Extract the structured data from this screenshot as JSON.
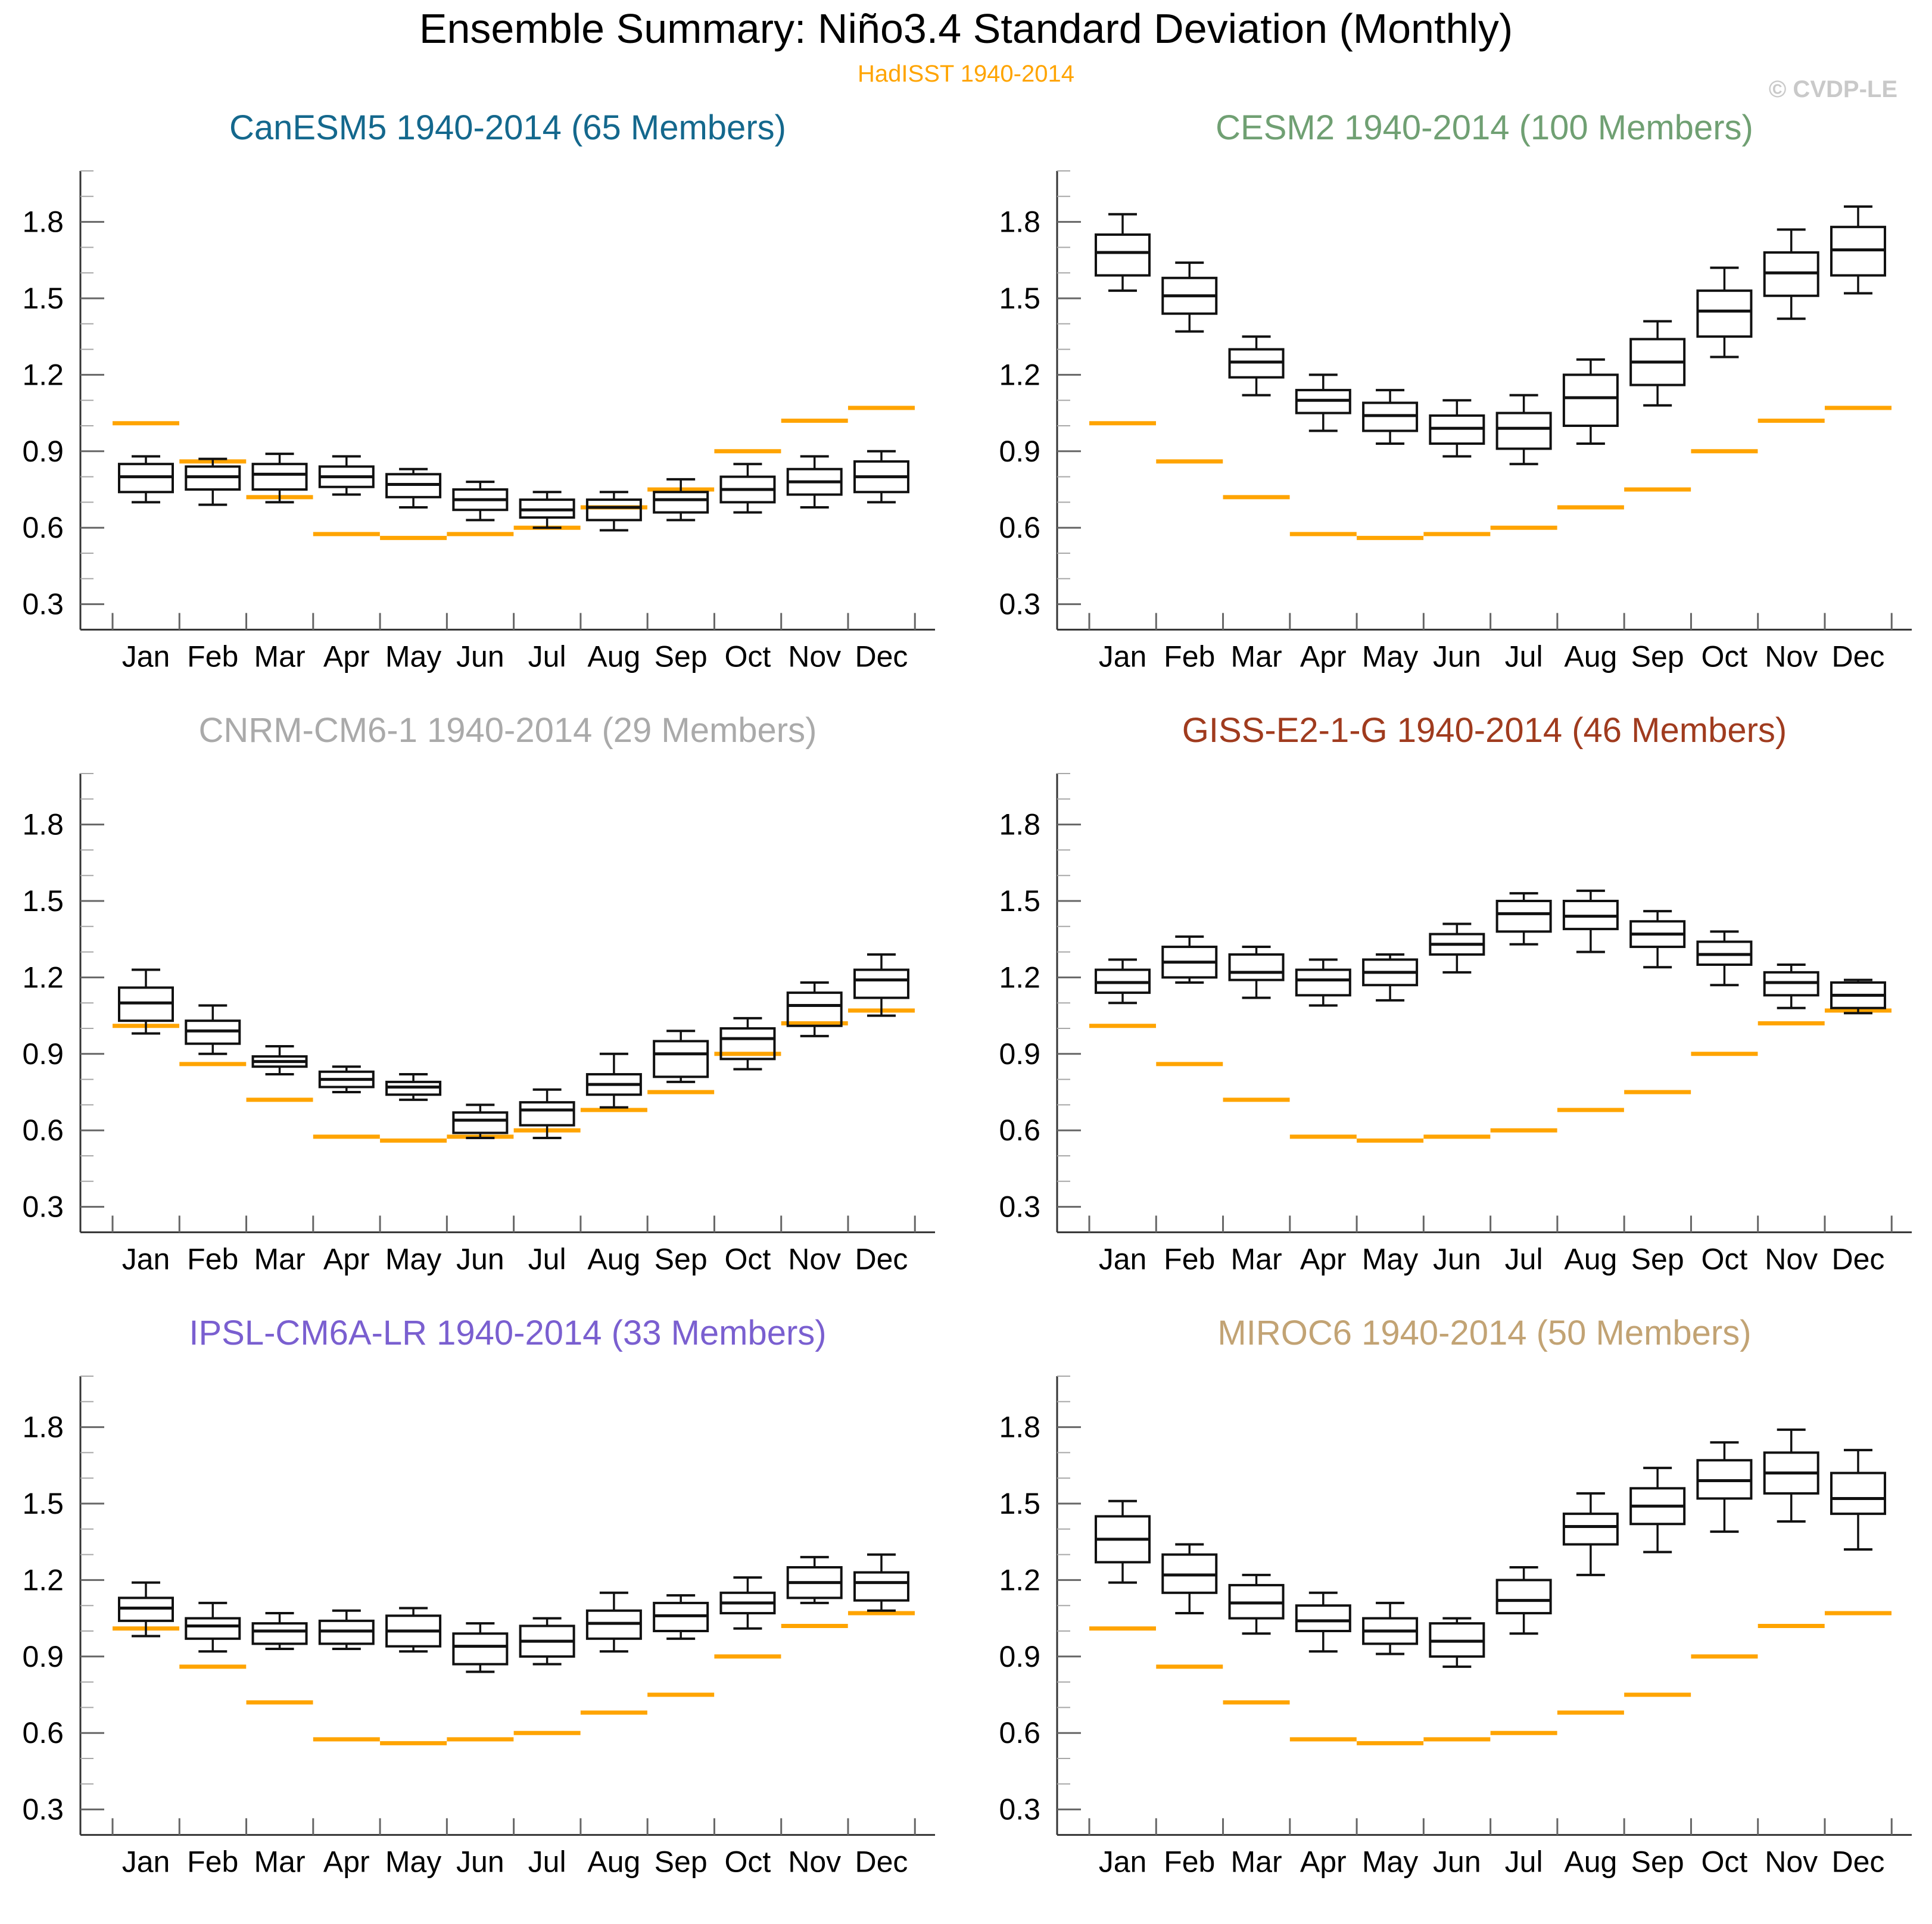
{
  "header": {
    "title": "Ensemble Summary: Niño3.4 Standard Deviation (Monthly)",
    "subtitle": "HadISST 1940-2014",
    "watermark": "© CVDP-LE"
  },
  "chart_data": {
    "type": "boxplot",
    "title": "Ensemble Summary: Niño3.4 Standard Deviation (Monthly)",
    "categories": [
      "Jan",
      "Feb",
      "Mar",
      "Apr",
      "May",
      "Jun",
      "Jul",
      "Aug",
      "Sep",
      "Oct",
      "Nov",
      "Dec"
    ],
    "y_axis": {
      "min": 0.2,
      "max": 2.0,
      "major_ticks": [
        0.3,
        0.6,
        0.9,
        1.2,
        1.5,
        1.8
      ],
      "minor_step": 0.1,
      "grid": false
    },
    "box_stats_order": [
      "whisker_low",
      "q1",
      "median",
      "q3",
      "whisker_high"
    ],
    "observations": {
      "name": "HadISST 1940-2014",
      "color": "#FFA400",
      "values": [
        1.01,
        0.86,
        0.72,
        0.575,
        0.56,
        0.575,
        0.6,
        0.68,
        0.75,
        0.9,
        1.02,
        1.07
      ]
    },
    "panels": [
      {
        "id": "canesm5",
        "title": "CanESM5 1940-2014 (65 Members)",
        "color": "#14688D",
        "boxes": [
          [
            0.7,
            0.74,
            0.8,
            0.85,
            0.88
          ],
          [
            0.69,
            0.75,
            0.8,
            0.84,
            0.87
          ],
          [
            0.7,
            0.75,
            0.81,
            0.85,
            0.89
          ],
          [
            0.73,
            0.76,
            0.8,
            0.84,
            0.88
          ],
          [
            0.68,
            0.72,
            0.77,
            0.81,
            0.83
          ],
          [
            0.63,
            0.67,
            0.71,
            0.75,
            0.78
          ],
          [
            0.6,
            0.64,
            0.67,
            0.71,
            0.74
          ],
          [
            0.59,
            0.63,
            0.68,
            0.71,
            0.74
          ],
          [
            0.63,
            0.66,
            0.71,
            0.74,
            0.79
          ],
          [
            0.66,
            0.7,
            0.75,
            0.8,
            0.85
          ],
          [
            0.68,
            0.73,
            0.78,
            0.83,
            0.88
          ],
          [
            0.7,
            0.74,
            0.8,
            0.86,
            0.9
          ]
        ]
      },
      {
        "id": "cesm2",
        "title": "CESM2 1940-2014 (100 Members)",
        "color": "#70A073",
        "boxes": [
          [
            1.53,
            1.59,
            1.68,
            1.75,
            1.83
          ],
          [
            1.37,
            1.44,
            1.51,
            1.58,
            1.64
          ],
          [
            1.12,
            1.19,
            1.25,
            1.3,
            1.35
          ],
          [
            0.98,
            1.05,
            1.1,
            1.14,
            1.2
          ],
          [
            0.93,
            0.98,
            1.04,
            1.09,
            1.14
          ],
          [
            0.88,
            0.93,
            0.99,
            1.04,
            1.1
          ],
          [
            0.85,
            0.91,
            0.99,
            1.05,
            1.12
          ],
          [
            0.93,
            1.0,
            1.11,
            1.2,
            1.26
          ],
          [
            1.08,
            1.16,
            1.25,
            1.34,
            1.41
          ],
          [
            1.27,
            1.35,
            1.45,
            1.53,
            1.62
          ],
          [
            1.42,
            1.51,
            1.6,
            1.68,
            1.77
          ],
          [
            1.52,
            1.59,
            1.69,
            1.78,
            1.86
          ]
        ]
      },
      {
        "id": "cnrm-cm6-1",
        "title": "CNRM-CM6-1 1940-2014 (29 Members)",
        "color": "#AAAAAA",
        "boxes": [
          [
            0.98,
            1.03,
            1.1,
            1.16,
            1.23
          ],
          [
            0.9,
            0.94,
            0.99,
            1.03,
            1.09
          ],
          [
            0.82,
            0.85,
            0.87,
            0.89,
            0.93
          ],
          [
            0.75,
            0.77,
            0.8,
            0.83,
            0.85
          ],
          [
            0.72,
            0.74,
            0.77,
            0.79,
            0.82
          ],
          [
            0.57,
            0.59,
            0.64,
            0.67,
            0.7
          ],
          [
            0.57,
            0.62,
            0.68,
            0.71,
            0.76
          ],
          [
            0.69,
            0.74,
            0.78,
            0.82,
            0.9
          ],
          [
            0.79,
            0.81,
            0.9,
            0.95,
            0.99
          ],
          [
            0.84,
            0.88,
            0.96,
            1.0,
            1.04
          ],
          [
            0.97,
            1.01,
            1.09,
            1.14,
            1.18
          ],
          [
            1.05,
            1.12,
            1.19,
            1.23,
            1.29
          ]
        ]
      },
      {
        "id": "giss-e2-1-g",
        "title": "GISS-E2-1-G 1940-2014 (46 Members)",
        "color": "#A03B1E",
        "boxes": [
          [
            1.1,
            1.14,
            1.18,
            1.23,
            1.27
          ],
          [
            1.18,
            1.2,
            1.26,
            1.32,
            1.36
          ],
          [
            1.12,
            1.19,
            1.22,
            1.29,
            1.32
          ],
          [
            1.09,
            1.13,
            1.19,
            1.23,
            1.27
          ],
          [
            1.11,
            1.17,
            1.22,
            1.27,
            1.29
          ],
          [
            1.22,
            1.29,
            1.33,
            1.37,
            1.41
          ],
          [
            1.33,
            1.38,
            1.45,
            1.5,
            1.53
          ],
          [
            1.3,
            1.39,
            1.44,
            1.5,
            1.54
          ],
          [
            1.24,
            1.32,
            1.37,
            1.42,
            1.46
          ],
          [
            1.17,
            1.25,
            1.29,
            1.34,
            1.38
          ],
          [
            1.08,
            1.13,
            1.18,
            1.22,
            1.25
          ],
          [
            1.06,
            1.08,
            1.13,
            1.18,
            1.19
          ]
        ]
      },
      {
        "id": "ipsl-cm6a-lr",
        "title": "IPSL-CM6A-LR 1940-2014 (33 Members)",
        "color": "#7A5FD0",
        "boxes": [
          [
            0.98,
            1.04,
            1.09,
            1.13,
            1.19
          ],
          [
            0.92,
            0.97,
            1.02,
            1.05,
            1.11
          ],
          [
            0.93,
            0.95,
            1.0,
            1.03,
            1.07
          ],
          [
            0.93,
            0.95,
            1.0,
            1.04,
            1.08
          ],
          [
            0.92,
            0.94,
            1.0,
            1.06,
            1.09
          ],
          [
            0.84,
            0.87,
            0.94,
            0.99,
            1.03
          ],
          [
            0.87,
            0.9,
            0.96,
            1.02,
            1.05
          ],
          [
            0.92,
            0.97,
            1.03,
            1.08,
            1.15
          ],
          [
            0.97,
            1.0,
            1.06,
            1.11,
            1.14
          ],
          [
            1.01,
            1.07,
            1.11,
            1.15,
            1.21
          ],
          [
            1.11,
            1.13,
            1.19,
            1.25,
            1.29
          ],
          [
            1.08,
            1.12,
            1.19,
            1.23,
            1.3
          ]
        ]
      },
      {
        "id": "miroc6",
        "title": "MIROC6 1940-2014 (50 Members)",
        "color": "#C2A374",
        "boxes": [
          [
            1.19,
            1.27,
            1.36,
            1.45,
            1.51
          ],
          [
            1.07,
            1.15,
            1.22,
            1.3,
            1.34
          ],
          [
            0.99,
            1.05,
            1.11,
            1.18,
            1.22
          ],
          [
            0.92,
            1.0,
            1.04,
            1.1,
            1.15
          ],
          [
            0.91,
            0.95,
            1.0,
            1.05,
            1.11
          ],
          [
            0.86,
            0.9,
            0.96,
            1.03,
            1.05
          ],
          [
            0.99,
            1.07,
            1.12,
            1.2,
            1.25
          ],
          [
            1.22,
            1.34,
            1.41,
            1.46,
            1.54
          ],
          [
            1.31,
            1.42,
            1.49,
            1.56,
            1.64
          ],
          [
            1.39,
            1.52,
            1.59,
            1.67,
            1.74
          ],
          [
            1.43,
            1.54,
            1.62,
            1.7,
            1.79
          ],
          [
            1.32,
            1.46,
            1.52,
            1.62,
            1.71
          ]
        ]
      }
    ]
  }
}
